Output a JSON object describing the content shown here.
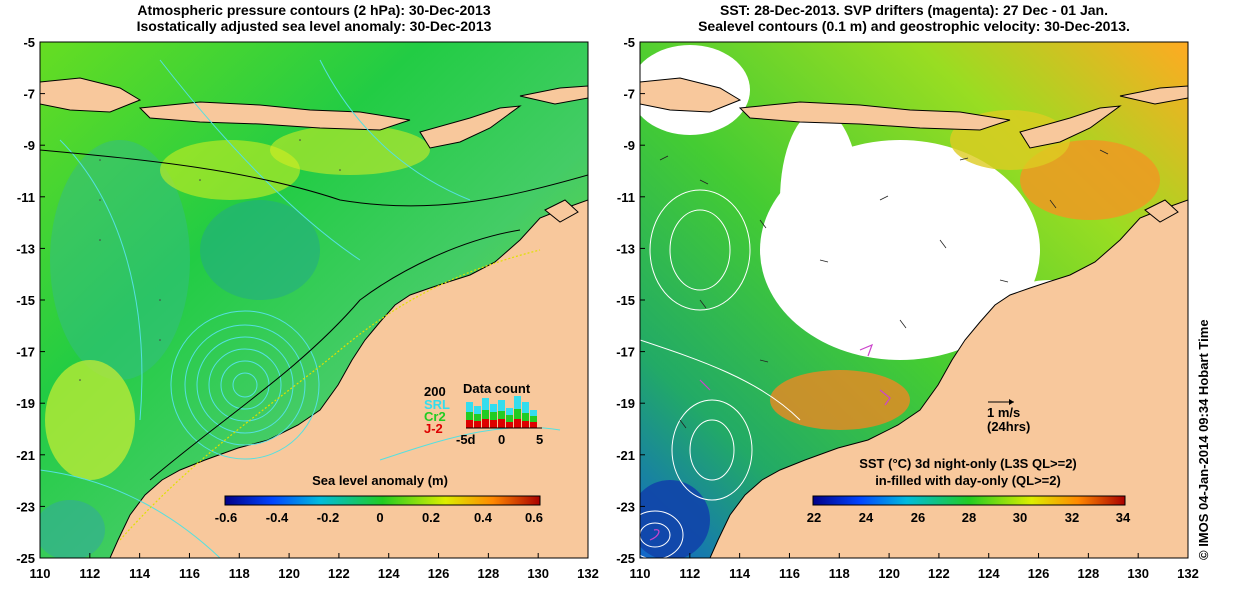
{
  "left_panel": {
    "title_line1": "Atmospheric pressure contours (2 hPa): 30-Dec-2013",
    "title_line2": "Isostatically adjusted sea level anomaly: 30-Dec-2013",
    "colorbar_label": "Sea level anomaly (m)",
    "colorbar_ticks": [
      "-0.6",
      "-0.4",
      "-0.2",
      "0",
      "0.2",
      "0.4",
      "0.6"
    ],
    "data_count": {
      "title": "Data count",
      "max_label": "200",
      "series": [
        {
          "name": "SRL",
          "color": "#33ddee"
        },
        {
          "name": "Cr2",
          "color": "#22cc22"
        },
        {
          "name": "J-2",
          "color": "#dd0000"
        }
      ],
      "x_ticks": [
        "-5d",
        "0",
        "5"
      ]
    }
  },
  "right_panel": {
    "title_line1": "SST: 28-Dec-2013. SVP drifters (magenta): 27 Dec - 01 Jan.",
    "title_line2": "Sealevel contours (0.1 m) and geostrophic velocity: 30-Dec-2013.",
    "velocity_scale_label": "1 m/s",
    "velocity_scale_sub": "(24hrs)",
    "colorbar_line1": "SST (°C)  3d night-only (L3S QL>=2)",
    "colorbar_line2": "in-filled with day-only (QL>=2)",
    "colorbar_ticks": [
      "22",
      "24",
      "26",
      "28",
      "30",
      "32",
      "34"
    ]
  },
  "axes": {
    "y_ticks": [
      "-5",
      "-7",
      "-9",
      "-11",
      "-13",
      "-15",
      "-17",
      "-19",
      "-21",
      "-23",
      "-25"
    ],
    "x_ticks": [
      "110",
      "112",
      "114",
      "116",
      "118",
      "120",
      "122",
      "124",
      "126",
      "128",
      "130",
      "132"
    ]
  },
  "credit": "© IMOS 04-Jan-2014 09:34 Hobart Time",
  "colors": {
    "land": "#f8c89c",
    "ocean_green": "#44cc22",
    "contour_cyan": "#55e0e0",
    "drifter_magenta": "#cc44cc"
  }
}
